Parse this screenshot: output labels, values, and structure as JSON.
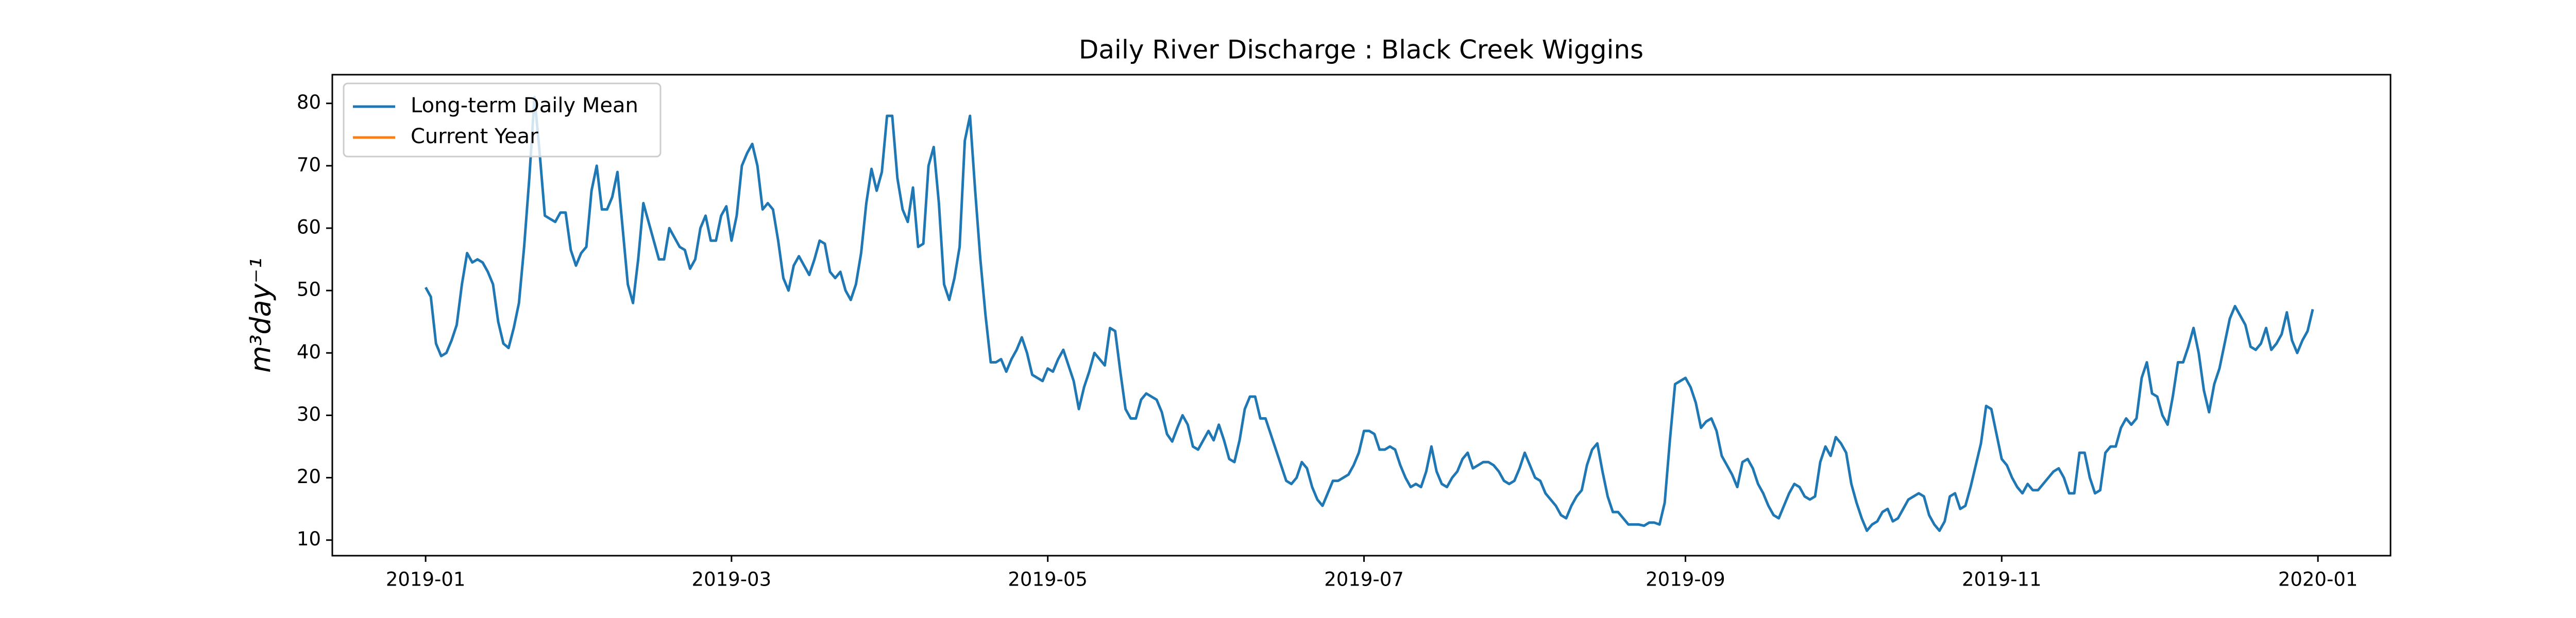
{
  "chart_data": {
    "type": "line",
    "title": "Daily River Discharge : Black Creek Wiggins",
    "ylabel": "m³day⁻¹",
    "legend": "upper left",
    "grid": false,
    "xlim": [
      -18,
      379
    ],
    "xticks": [
      {
        "value": 0,
        "label": "2019-01"
      },
      {
        "value": 59,
        "label": "2019-03"
      },
      {
        "value": 120,
        "label": "2019-05"
      },
      {
        "value": 181,
        "label": "2019-07"
      },
      {
        "value": 243,
        "label": "2019-09"
      },
      {
        "value": 304,
        "label": "2019-11"
      },
      {
        "value": 365,
        "label": "2020-01"
      }
    ],
    "ylim": [
      7.5,
      84.6
    ],
    "yticks": [
      10,
      20,
      30,
      40,
      50,
      60,
      70,
      80
    ],
    "series": [
      {
        "name": "Long-term Daily Mean",
        "color": "#1f77b4",
        "values": [
          50.5,
          49,
          41.5,
          39.5,
          40,
          42,
          44.5,
          51,
          56,
          54.5,
          55,
          54.5,
          53,
          51,
          45,
          41.5,
          40.8,
          44,
          48,
          57,
          68,
          81,
          72,
          62,
          61.5,
          61,
          62.5,
          62.5,
          56.5,
          54,
          56,
          57,
          66,
          70,
          63,
          63,
          65,
          69,
          60,
          51,
          48,
          55,
          64,
          61,
          58,
          55,
          55,
          60,
          58.5,
          57,
          56.5,
          53.5,
          55,
          60,
          62,
          58,
          58,
          62,
          63.5,
          58,
          62,
          70,
          72,
          73.5,
          70,
          63,
          64,
          63,
          58,
          52,
          50,
          54,
          55.5,
          54,
          52.5,
          55,
          58,
          57.5,
          53,
          52,
          53,
          50,
          48.5,
          51,
          56,
          64,
          69.5,
          66,
          69,
          78,
          78,
          68,
          63,
          61,
          66.5,
          57,
          57.5,
          70,
          73,
          64,
          51,
          48.5,
          52,
          57,
          74,
          78,
          66,
          55,
          46,
          38.5,
          38.5,
          39,
          37,
          39,
          40.5,
          42.5,
          40,
          36.5,
          36,
          35.5,
          37.5,
          37,
          39,
          40.5,
          38,
          35.5,
          31,
          34.5,
          37,
          40,
          39,
          38,
          44,
          43.5,
          37,
          31,
          29.5,
          29.5,
          32.5,
          33.5,
          33,
          32.5,
          30.5,
          27,
          25.8,
          28,
          30,
          28.5,
          25,
          24.5,
          26,
          27.5,
          26,
          28.5,
          26,
          23,
          22.5,
          26,
          31,
          33,
          33,
          29.5,
          29.5,
          27,
          24.5,
          22,
          19.5,
          19,
          20,
          22.5,
          21.5,
          18.5,
          16.5,
          15.5,
          17.5,
          19.5,
          19.5,
          20,
          20.5,
          22,
          24,
          27.5,
          27.5,
          27,
          24.5,
          24.5,
          25,
          24.5,
          22,
          20,
          18.5,
          19,
          18.5,
          21,
          25,
          21,
          19,
          18.5,
          20,
          21,
          23,
          24,
          21.5,
          22,
          22.5,
          22.5,
          22,
          21,
          19.5,
          19,
          19.5,
          21.5,
          24,
          22,
          20,
          19.5,
          17.5,
          16.5,
          15.5,
          14,
          13.5,
          15.5,
          17,
          18,
          22,
          24.5,
          25.5,
          21,
          17,
          14.5,
          14.5,
          13.5,
          12.5,
          12.5,
          12.5,
          12.3,
          12.8,
          12.8,
          12.5,
          16,
          26,
          35,
          35.5,
          36,
          34.5,
          32,
          28,
          29,
          29.5,
          27.5,
          23.5,
          22,
          20.5,
          18.5,
          22.5,
          23,
          21.5,
          19,
          17.5,
          15.5,
          14,
          13.5,
          15.5,
          17.5,
          19,
          18.5,
          17,
          16.5,
          17,
          22.5,
          25,
          23.5,
          26.5,
          25.5,
          24,
          19,
          16,
          13.5,
          11.5,
          12.5,
          13,
          14.5,
          15,
          13,
          13.5,
          15,
          16.5,
          17,
          17.5,
          17,
          14,
          12.5,
          11.5,
          13,
          17,
          17.5,
          15,
          15.5,
          18.5,
          22,
          25.5,
          31.5,
          31,
          27,
          23,
          22,
          20,
          18.5,
          17.5,
          19,
          18,
          18,
          19,
          20,
          21,
          21.5,
          20,
          17.5,
          17.5,
          24,
          24,
          20,
          17.5,
          18,
          24,
          25,
          25,
          28,
          29.5,
          28.5,
          29.5,
          36,
          38.5,
          33.5,
          33,
          30,
          28.5,
          33,
          38.5,
          38.5,
          41,
          44,
          40,
          34,
          30.5,
          35,
          37.5,
          41.5,
          45.5,
          47.5,
          46,
          44.5,
          41,
          40.5,
          41.5,
          44,
          40.5,
          41.5,
          43,
          46.5,
          42,
          40,
          42,
          43.5,
          47
        ]
      },
      {
        "name": "Current Year",
        "color": "#ff7f0e",
        "values": []
      }
    ]
  }
}
